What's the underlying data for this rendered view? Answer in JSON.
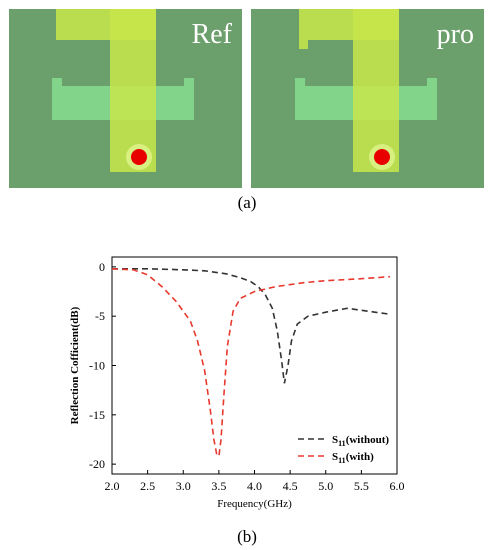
{
  "figure": {
    "caption_a": "(a)",
    "caption_b": "(b)"
  },
  "antenna_panels": [
    {
      "label": "Ref"
    },
    {
      "label": "pro"
    }
  ],
  "colors": {
    "substrate": "#6b9f6b",
    "patch": "#c8e64a",
    "ground_slot": "#82d48a",
    "feed_dot": "#e80000",
    "series_without": "#333333",
    "series_with": "#e8392f"
  },
  "chart_data": {
    "type": "line",
    "xlabel": "Frequency(GHz)",
    "ylabel": "Reflection Cofficient(dB)",
    "xlim": [
      2.0,
      6.0
    ],
    "ylim": [
      -21,
      1
    ],
    "xticks": [
      "2.0",
      "2.5",
      "3.0",
      "3.5",
      "4.0",
      "4.5",
      "5.0",
      "5.5",
      "6.0"
    ],
    "yticks": [
      "0",
      "-5",
      "-10",
      "-15",
      "-20"
    ],
    "legend": "bottom-right",
    "grid": false,
    "series": [
      {
        "name": "S11(without)",
        "legend_main": "S",
        "legend_sub": "11",
        "legend_suffix": "(without)",
        "style": "dashed",
        "x": [
          2.0,
          2.5,
          3.0,
          3.3,
          3.6,
          3.8,
          3.95,
          4.05,
          4.15,
          4.25,
          4.32,
          4.38,
          4.42,
          4.47,
          4.52,
          4.6,
          4.75,
          5.0,
          5.3,
          5.6,
          5.9
        ],
        "y": [
          -0.2,
          -0.2,
          -0.3,
          -0.4,
          -0.7,
          -1.1,
          -1.5,
          -2.0,
          -2.8,
          -4.2,
          -6.5,
          -9.5,
          -11.8,
          -10.0,
          -7.5,
          -5.8,
          -5.0,
          -4.6,
          -4.2,
          -4.5,
          -4.8
        ]
      },
      {
        "name": "S11(with)",
        "legend_main": "S",
        "legend_sub": "11",
        "legend_suffix": "(with)",
        "style": "dashed",
        "x": [
          2.0,
          2.3,
          2.5,
          2.7,
          2.9,
          3.1,
          3.2,
          3.3,
          3.38,
          3.43,
          3.47,
          3.5,
          3.53,
          3.57,
          3.62,
          3.7,
          3.8,
          4.0,
          4.3,
          4.7,
          5.0,
          5.5,
          5.9
        ],
        "y": [
          -0.2,
          -0.3,
          -0.8,
          -2.0,
          -3.5,
          -5.5,
          -7.5,
          -10.5,
          -14.5,
          -17.5,
          -19.0,
          -19.2,
          -17.5,
          -13.0,
          -8.0,
          -4.5,
          -3.2,
          -2.5,
          -2.0,
          -1.6,
          -1.4,
          -1.2,
          -1.0
        ]
      }
    ]
  }
}
